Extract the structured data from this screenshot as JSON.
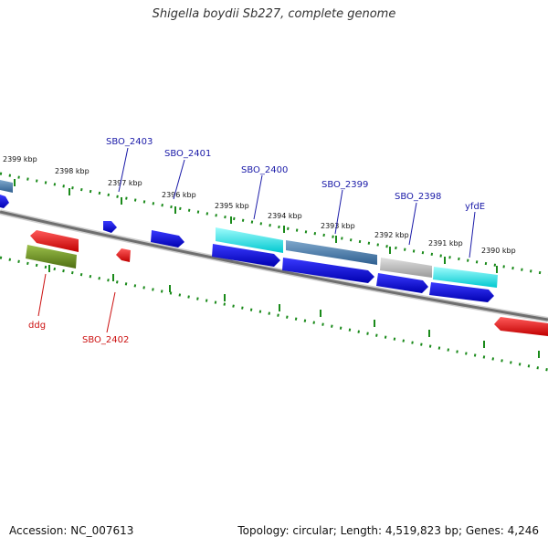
{
  "title": "Shigella boydii Sb227, complete genome",
  "footer": {
    "accession": "Accession: NC_007613",
    "summary": "Topology: circular; Length: 4,519,823 bp; Genes: 4,246"
  },
  "scale_labels": [
    "2399 kbp",
    "2398 kbp",
    "2397 kbp",
    "2396 kbp",
    "2395 kbp",
    "2394 kbp",
    "2393 kbp",
    "2392 kbp",
    "2391 kbp",
    "2390 kbp"
  ],
  "gene_labels": {
    "forward": [
      "SBO_2403",
      "SBO_2401",
      "SBO_2400",
      "SBO_2399",
      "SBO_2398",
      "yfdE"
    ],
    "reverse": [
      "ddg",
      "SBO_2402"
    ]
  },
  "colors": {
    "cds": "#1010e8",
    "highlight": "#00e5e5",
    "steel": "#4a7fb0",
    "grey": "#bdbdbd",
    "red": "#ee1111",
    "olive": "#6b8e23",
    "backbone": "#7a7a7a",
    "ticks": "#1a8a1a"
  }
}
